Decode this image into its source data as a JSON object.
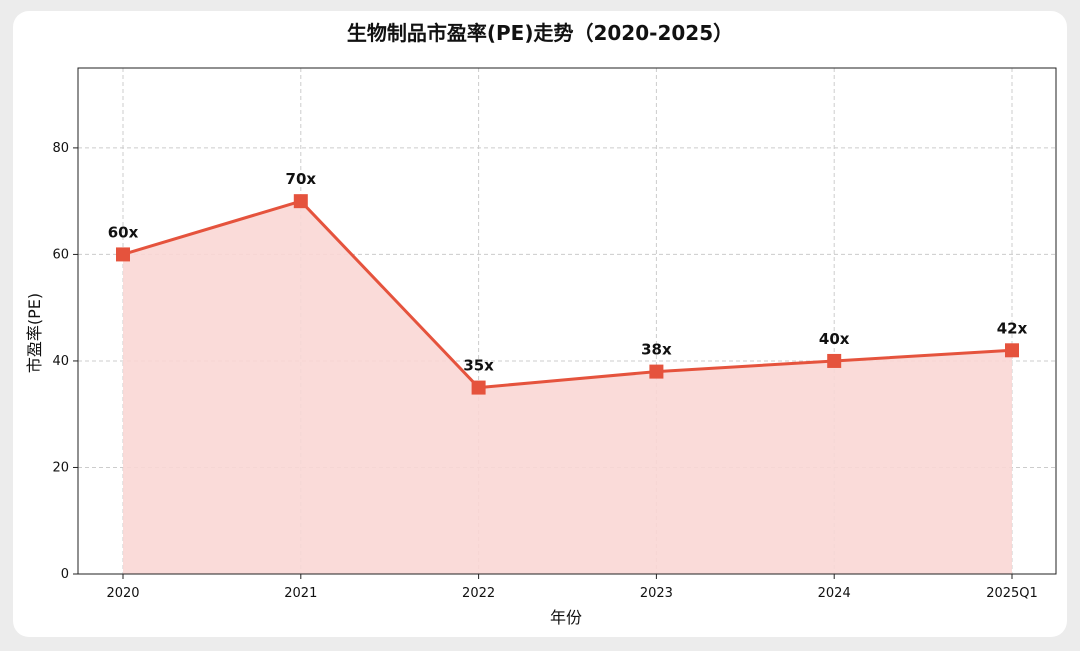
{
  "chart_data": {
    "type": "line",
    "title": "生物制品市盈率(PE)走势（2020-2025）",
    "xlabel": "年份",
    "ylabel": "市盈率(PE)",
    "categories": [
      "2020",
      "2021",
      "2022",
      "2023",
      "2024",
      "2025Q1"
    ],
    "series": [
      {
        "values": [
          60,
          70,
          35,
          38,
          40,
          42
        ],
        "labels": [
          "60x",
          "70x",
          "35x",
          "38x",
          "40x",
          "42x"
        ]
      }
    ],
    "ylim": [
      0,
      95
    ],
    "yticks": [
      0,
      20,
      40,
      60,
      80
    ],
    "grid": true,
    "fill_under_line": true,
    "marker": "square",
    "colors": {
      "line": "#e5533d",
      "fill": "#f9d7d5",
      "grid": "#cccccc",
      "axis": "#222222"
    }
  }
}
